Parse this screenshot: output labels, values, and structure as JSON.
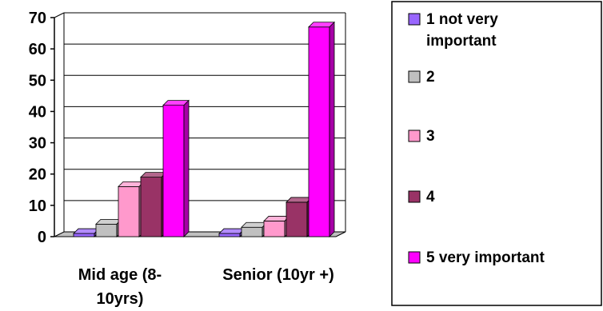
{
  "chart_data": {
    "type": "bar",
    "title": "",
    "xlabel": "",
    "ylabel": "",
    "ylim": [
      0,
      70
    ],
    "yticks": [
      0,
      10,
      20,
      30,
      40,
      50,
      60,
      70
    ],
    "grid": true,
    "legend_position": "right",
    "categories": [
      "Mid age (8- 10yrs)",
      "Senior (10yr +)"
    ],
    "category_lines": [
      [
        "Mid age (8-",
        "10yrs)"
      ],
      [
        "Senior (10yr +)"
      ]
    ],
    "series": [
      {
        "name": "1 not very important",
        "legend_lines": [
          "1 not very",
          "important"
        ],
        "color": "#9966ff",
        "values": [
          1,
          1
        ]
      },
      {
        "name": "2",
        "legend_lines": [
          "2"
        ],
        "color": "#c0c0c0",
        "values": [
          4,
          3
        ]
      },
      {
        "name": "3",
        "legend_lines": [
          "3"
        ],
        "color": "#ff99cc",
        "values": [
          16,
          5
        ]
      },
      {
        "name": "4",
        "legend_lines": [
          "4"
        ],
        "color": "#993366",
        "values": [
          19,
          11
        ]
      },
      {
        "name": "5 very important",
        "legend_lines": [
          "5 very important"
        ],
        "color": "#ff00ff",
        "values": [
          42,
          67
        ]
      }
    ]
  }
}
